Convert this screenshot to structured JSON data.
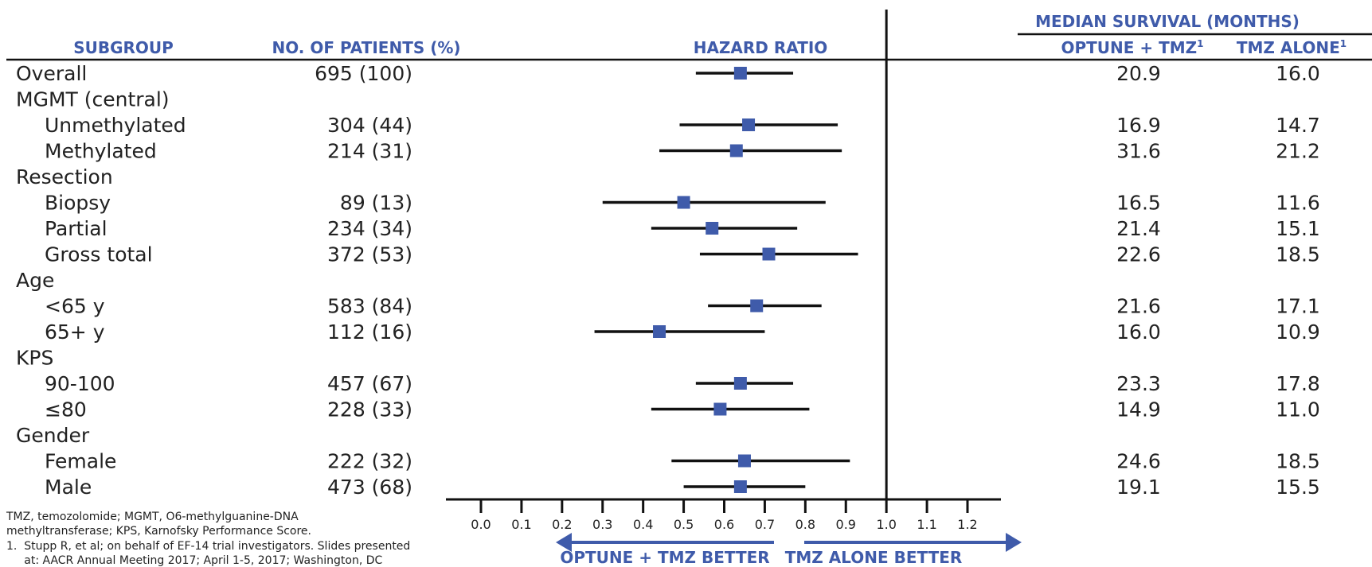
{
  "headers": {
    "subgroup": "SUBGROUP",
    "patients": "NO. OF PATIENTS (%)",
    "hazard": "HAZARD RATIO",
    "median": "MEDIAN SURVIVAL (MONTHS)",
    "optune": "OPTUNE + TMZ",
    "tmz": "TMZ ALONE",
    "sup": "1"
  },
  "arrows": {
    "left": "OPTUNE + TMZ BETTER",
    "right": "TMZ ALONE BETTER"
  },
  "colors": {
    "accent": "#3F5BAA",
    "line": "#111111"
  },
  "footnote": [
    "TMZ, temozolomide; MGMT, O6-methylguanine-DNA",
    "methyltransferase; KPS, Karnofsky Performance Score.",
    "1.  Stupp R, et al; on behalf of EF-14 trial investigators. Slides presented",
    "     at: AACR Annual Meeting 2017; April 1-5, 2017; Washington, DC"
  ],
  "chart_data": {
    "type": "forest",
    "xaxis": {
      "min": 0.0,
      "max": 1.2,
      "reference": 1.0,
      "ticks": [
        "0.0",
        "0.1",
        "0.2",
        "0.3",
        "0.4",
        "0.5",
        "0.6",
        "0.7",
        "0.8",
        "0.9",
        "1.0",
        "1.1",
        "1.2"
      ]
    },
    "rows": [
      {
        "label": "Overall",
        "indent": 0,
        "patients": "695 (100)",
        "hr": 0.64,
        "lo": 0.53,
        "hi": 0.77,
        "optune": "20.9",
        "tmz": "16.0"
      },
      {
        "label": "MGMT (central)",
        "indent": 0,
        "header": true
      },
      {
        "label": "Unmethylated",
        "indent": 1,
        "patients": "304 (44)",
        "hr": 0.66,
        "lo": 0.49,
        "hi": 0.88,
        "optune": "16.9",
        "tmz": "14.7"
      },
      {
        "label": "Methylated",
        "indent": 1,
        "patients": "214 (31)",
        "hr": 0.63,
        "lo": 0.44,
        "hi": 0.89,
        "optune": "31.6",
        "tmz": "21.2"
      },
      {
        "label": "Resection",
        "indent": 0,
        "header": true
      },
      {
        "label": "Biopsy",
        "indent": 1,
        "patients": "89 (13)",
        "hr": 0.5,
        "lo": 0.3,
        "hi": 0.85,
        "optune": "16.5",
        "tmz": "11.6"
      },
      {
        "label": "Partial",
        "indent": 1,
        "patients": "234 (34)",
        "hr": 0.57,
        "lo": 0.42,
        "hi": 0.78,
        "optune": "21.4",
        "tmz": "15.1"
      },
      {
        "label": "Gross total",
        "indent": 1,
        "patients": "372 (53)",
        "hr": 0.71,
        "lo": 0.54,
        "hi": 0.93,
        "optune": "22.6",
        "tmz": "18.5"
      },
      {
        "label": "Age",
        "indent": 0,
        "header": true
      },
      {
        "label": "<65 y",
        "indent": 1,
        "patients": "583 (84)",
        "hr": 0.68,
        "lo": 0.56,
        "hi": 0.84,
        "optune": "21.6",
        "tmz": "17.1"
      },
      {
        "label": "65+ y",
        "indent": 1,
        "patients": "112 (16)",
        "hr": 0.44,
        "lo": 0.28,
        "hi": 0.7,
        "optune": "16.0",
        "tmz": "10.9"
      },
      {
        "label": "KPS",
        "indent": 0,
        "header": true
      },
      {
        "label": "90-100",
        "indent": 1,
        "patients": "457 (67)",
        "hr": 0.64,
        "lo": 0.53,
        "hi": 0.77,
        "optune": "23.3",
        "tmz": "17.8"
      },
      {
        "label": "≤80",
        "indent": 1,
        "patients": "228 (33)",
        "hr": 0.59,
        "lo": 0.42,
        "hi": 0.81,
        "optune": "14.9",
        "tmz": "11.0"
      },
      {
        "label": "Gender",
        "indent": 0,
        "header": true
      },
      {
        "label": "Female",
        "indent": 1,
        "patients": "222 (32)",
        "hr": 0.65,
        "lo": 0.47,
        "hi": 0.91,
        "optune": "24.6",
        "tmz": "18.5"
      },
      {
        "label": "Male",
        "indent": 1,
        "patients": "473 (68)",
        "hr": 0.64,
        "lo": 0.5,
        "hi": 0.8,
        "optune": "19.1",
        "tmz": "15.5"
      }
    ]
  }
}
